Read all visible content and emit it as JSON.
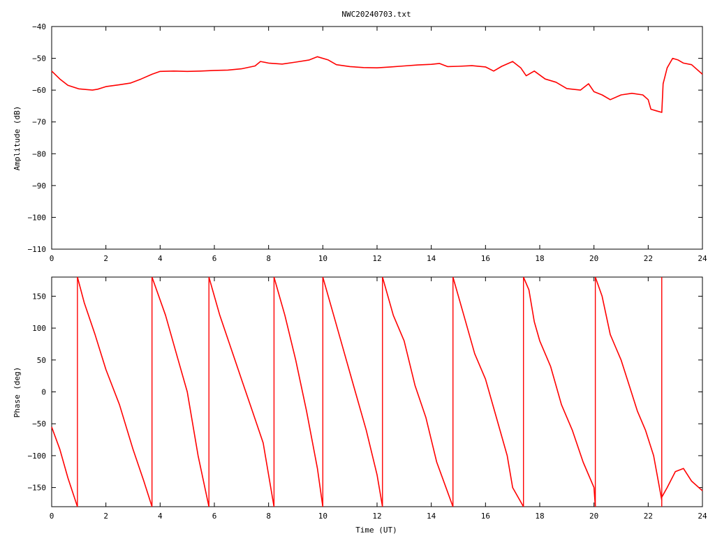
{
  "title": "NWC20240703.txt",
  "colors": {
    "series": "#ff0000",
    "axis": "#000000",
    "background": "#ffffff"
  },
  "chart_data": [
    {
      "type": "line",
      "name": "amplitude",
      "xlabel": "",
      "ylabel": "Amplitude (dB)",
      "xlim": [
        0,
        24
      ],
      "ylim": [
        -110,
        -40
      ],
      "xticks": [
        0,
        2,
        4,
        6,
        8,
        10,
        12,
        14,
        16,
        18,
        20,
        22,
        24
      ],
      "yticks": [
        -110,
        -100,
        -90,
        -80,
        -70,
        -60,
        -50,
        -40
      ],
      "grid": false,
      "series": [
        {
          "x": [
            0,
            0.3,
            0.6,
            1.0,
            1.5,
            1.7,
            2.0,
            2.5,
            2.9,
            3.3,
            3.7,
            4.0,
            4.5,
            5.0,
            5.5,
            6.0,
            6.5,
            7.0,
            7.5,
            7.7,
            8.0,
            8.5,
            9.0,
            9.5,
            9.8,
            10.2,
            10.5,
            11.0,
            11.5,
            12.0,
            12.5,
            13.0,
            13.5,
            14.0,
            14.3,
            14.6,
            15.0,
            15.5,
            16.0,
            16.3,
            16.6,
            17.0,
            17.3,
            17.5,
            17.8,
            18.2,
            18.6,
            19.0,
            19.5,
            19.8,
            20.0,
            20.3,
            20.6,
            21.0,
            21.4,
            21.8,
            22.0,
            22.1,
            22.3,
            22.5,
            22.55,
            22.7,
            22.9,
            23.1,
            23.3,
            23.6,
            24.0
          ],
          "y": [
            -54,
            -56.5,
            -58.5,
            -59.6,
            -60.0,
            -59.7,
            -58.9,
            -58.3,
            -57.8,
            -56.5,
            -55,
            -54.1,
            -54,
            -54.1,
            -54.0,
            -53.8,
            -53.7,
            -53.3,
            -52.4,
            -51.0,
            -51.5,
            -51.8,
            -51.2,
            -50.5,
            -49.5,
            -50.5,
            -52,
            -52.6,
            -52.9,
            -53.0,
            -52.7,
            -52.4,
            -52.1,
            -51.9,
            -51.6,
            -52.6,
            -52.5,
            -52.3,
            -52.7,
            -54,
            -52.5,
            -51.0,
            -53.0,
            -55.5,
            -54.0,
            -56.5,
            -57.5,
            -59.5,
            -60,
            -58,
            -60.5,
            -61.5,
            -63,
            -61.5,
            -61,
            -61.5,
            -63,
            -66,
            -66.5,
            -67,
            -58,
            -53,
            -50.0,
            -50.5,
            -51.5,
            -52,
            -55
          ]
        }
      ]
    },
    {
      "type": "line",
      "name": "phase",
      "xlabel": "Time (UT)",
      "ylabel": "Phase (deg)",
      "xlim": [
        0,
        24
      ],
      "ylim": [
        -180,
        180
      ],
      "xticks": [
        0,
        2,
        4,
        6,
        8,
        10,
        12,
        14,
        16,
        18,
        20,
        22,
        24
      ],
      "yticks": [
        -150,
        -100,
        -50,
        0,
        50,
        100,
        150
      ],
      "grid": false,
      "series": [
        {
          "segments": [
            {
              "x": [
                0,
                0.3,
                0.6,
                0.95
              ],
              "y": [
                -55,
                -90,
                -135,
                -180
              ]
            },
            {
              "x": [
                0.95,
                1.2,
                1.6,
                2.0,
                2.5,
                3.0,
                3.4,
                3.7
              ],
              "y": [
                180,
                140,
                90,
                35,
                -20,
                -90,
                -140,
                -180
              ]
            },
            {
              "x": [
                3.7,
                4.2,
                4.6,
                5.0,
                5.4,
                5.8
              ],
              "y": [
                180,
                120,
                60,
                0,
                -100,
                -180
              ]
            },
            {
              "x": [
                5.8,
                6.2,
                6.6,
                7.0,
                7.4,
                7.8,
                8.2
              ],
              "y": [
                180,
                120,
                70,
                20,
                -30,
                -80,
                -180
              ]
            },
            {
              "x": [
                8.2,
                8.6,
                9.0,
                9.4,
                9.8,
                10.0
              ],
              "y": [
                180,
                120,
                50,
                -30,
                -120,
                -180
              ]
            },
            {
              "x": [
                10.0,
                10.4,
                10.8,
                11.2,
                11.6,
                12.0,
                12.2
              ],
              "y": [
                180,
                120,
                60,
                0,
                -60,
                -130,
                -180
              ]
            },
            {
              "x": [
                12.2,
                12.6,
                13.0,
                13.4,
                13.8,
                14.2,
                14.8
              ],
              "y": [
                180,
                120,
                80,
                10,
                -40,
                -110,
                -180
              ]
            },
            {
              "x": [
                14.8,
                15.2,
                15.6,
                16.0,
                16.4,
                16.8,
                17.0,
                17.4
              ],
              "y": [
                180,
                120,
                60,
                20,
                -40,
                -100,
                -150,
                -180
              ]
            },
            {
              "x": [
                17.4,
                17.6,
                17.8,
                18.0,
                18.4,
                18.8,
                19.2,
                19.6,
                20.0,
                20.05
              ],
              "y": [
                180,
                160,
                110,
                80,
                40,
                -20,
                -60,
                -110,
                -150,
                -180
              ]
            },
            {
              "x": [
                20.05,
                20.3,
                20.6,
                20.8,
                21.0,
                21.3,
                21.6,
                21.9,
                22.2,
                22.5
              ],
              "y": [
                180,
                150,
                90,
                70,
                50,
                10,
                -30,
                -60,
                -100,
                -170
              ]
            },
            {
              "x": [
                22.5,
                22.7,
                23.0,
                23.3,
                23.6,
                24.0
              ],
              "y": [
                -165,
                -150,
                -125,
                -120,
                -140,
                -155
              ]
            }
          ],
          "wrap_x": [
            0.95,
            3.7,
            5.8,
            8.2,
            10.0,
            12.2,
            14.8,
            17.4,
            20.05,
            22.5
          ]
        }
      ]
    }
  ]
}
